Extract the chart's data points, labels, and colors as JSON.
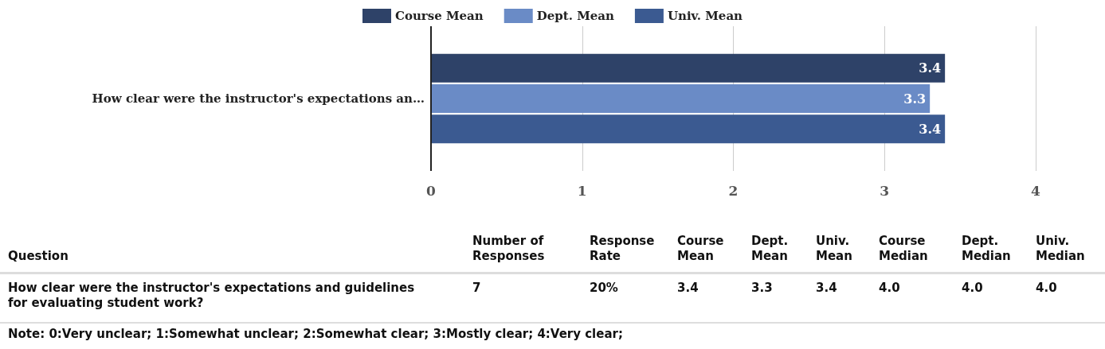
{
  "chart_data": [
    {
      "type": "bar",
      "orientation": "horizontal",
      "categories": [
        "How clear were the instructor's expectations an…"
      ],
      "series": [
        {
          "name": "Course Mean",
          "color": "#2e4268",
          "values": [
            3.4
          ]
        },
        {
          "name": "Dept. Mean",
          "color": "#6a8bc6",
          "values": [
            3.3
          ]
        },
        {
          "name": "Univ. Mean",
          "color": "#3b5a91",
          "values": [
            3.4
          ]
        }
      ],
      "xlim": [
        0,
        4
      ],
      "xticks": [
        0,
        1,
        2,
        3,
        4
      ],
      "grid": "x",
      "legend": "top",
      "data_labels": true
    },
    {
      "type": "other",
      "categories": [
        "Question",
        "Number of Responses",
        "Response Rate",
        "Course Mean",
        "Dept. Mean",
        "Univ. Mean",
        "Course Median",
        "Dept. Median",
        "Univ. Median"
      ],
      "value_labels": [
        "How clear were the instructor's expectations and guidelines for evaluating student work?",
        "7",
        "20%",
        "3.4",
        "3.3",
        "3.4",
        "4.0",
        "4.0",
        "4.0"
      ],
      "annotations": [
        "Note: 0:Very unclear; 1:Somewhat unclear; 2:Somewhat clear; 3:Mostly clear; 4:Very clear;"
      ]
    }
  ]
}
